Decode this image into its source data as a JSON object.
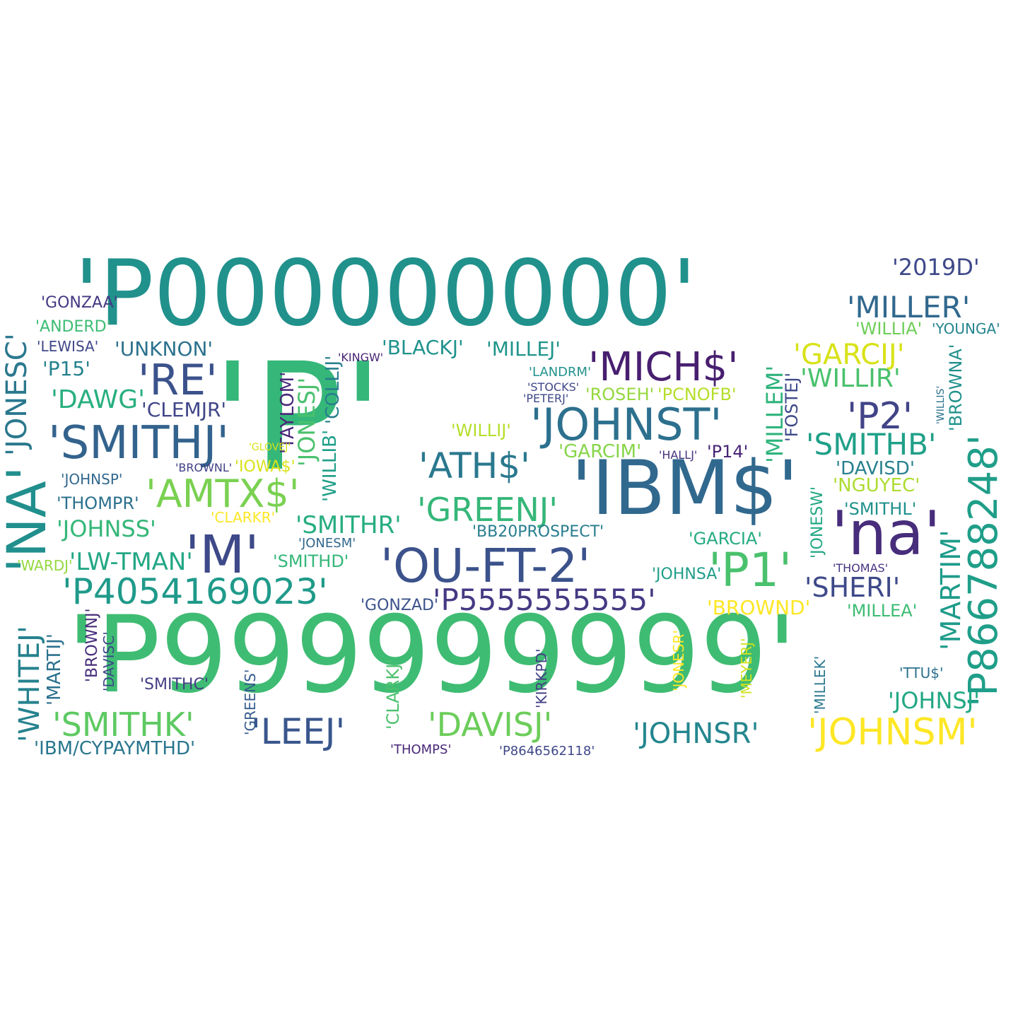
{
  "words": [
    {
      "text": "'P000000000'",
      "color": "#21918c"
    },
    {
      "text": "'P'",
      "color": "#35b779"
    },
    {
      "text": "'P999999999'",
      "color": "#3fbc73"
    },
    {
      "text": "'NA'",
      "color": "#218f8d"
    },
    {
      "text": "'IBM$'",
      "color": "#31688e"
    },
    {
      "text": "'na'",
      "color": "#472d7b"
    },
    {
      "text": "'SMITHJ'",
      "color": "#33638d"
    },
    {
      "text": "'JOHNST'",
      "color": "#2d708e"
    },
    {
      "text": "'MICH$'",
      "color": "#481f70"
    },
    {
      "text": "'P866788248'",
      "color": "#1f9e89"
    },
    {
      "text": "'OU-FT-2'",
      "color": "#3b528b"
    },
    {
      "text": "'P4054169023'",
      "color": "#1f9a8a"
    },
    {
      "text": "'P5555555555'",
      "color": "#443a83"
    },
    {
      "text": "'SMITHK'",
      "color": "#5ec962"
    },
    {
      "text": "'DAVISJ'",
      "color": "#6ccd5a"
    },
    {
      "text": "'LEEJ'",
      "color": "#39568c"
    },
    {
      "text": "'JOHNSM'",
      "color": "#fde725"
    },
    {
      "text": "'JOHNSR'",
      "color": "#24868e"
    },
    {
      "text": "'M'",
      "color": "#3e4989"
    },
    {
      "text": "'RE'",
      "color": "#3b528b"
    },
    {
      "text": "'AMTX$'",
      "color": "#7ad151"
    },
    {
      "text": "'ATH$'",
      "color": "#2a788e"
    },
    {
      "text": "'GREENJ'",
      "color": "#35b779"
    },
    {
      "text": "'P1'",
      "color": "#4ac16d"
    },
    {
      "text": "'P2'",
      "color": "#414487"
    },
    {
      "text": "'MILLER'",
      "color": "#31688e"
    },
    {
      "text": "'GARCIJ'",
      "color": "#d8e219"
    },
    {
      "text": "'2019D'",
      "color": "#3e4989"
    },
    {
      "text": "'JONESC'",
      "color": "#2a788e"
    },
    {
      "text": "'WHITEJ'",
      "color": "#26828e"
    },
    {
      "text": "'SMITHB'",
      "color": "#1fa088"
    },
    {
      "text": "'MARTIM'",
      "color": "#1e9b8a"
    },
    {
      "text": "'SHERI'",
      "color": "#3e4989"
    },
    {
      "text": "'DAWG'",
      "color": "#29af7f"
    },
    {
      "text": "'SMITHR'",
      "color": "#26ad81"
    },
    {
      "text": "'LW-TMAN'",
      "color": "#22a785"
    },
    {
      "text": "'JOHNSS'",
      "color": "#35b779"
    },
    {
      "text": "'JOHNSJ'",
      "color": "#22a884"
    },
    {
      "text": "'UNKNON'",
      "color": "#2c728e"
    },
    {
      "text": "'BLACKJ'",
      "color": "#20928c"
    },
    {
      "text": "'MILLEJ'",
      "color": "#1f958b"
    },
    {
      "text": "'WILLIR'",
      "color": "#4ac16d"
    },
    {
      "text": "'CLEMJR'",
      "color": "#404688"
    },
    {
      "text": "'GARCIM'",
      "color": "#86d549"
    },
    {
      "text": "'ROSEH'",
      "color": "#95d840"
    },
    {
      "text": "'PCNOFB'",
      "color": "#b5de2b"
    },
    {
      "text": "'BROWND'",
      "color": "#fde725"
    },
    {
      "text": "'IBM/CYPAYMTHD'",
      "color": "#2a768e"
    },
    {
      "text": "'NGUYEC'",
      "color": "#addc30"
    },
    {
      "text": "'DAVISD'",
      "color": "#27808e"
    },
    {
      "text": "'SMITHL'",
      "color": "#21918c"
    },
    {
      "text": "'MILLEA'",
      "color": "#3dbc74"
    },
    {
      "text": "'JOHNSA'",
      "color": "#1f9e89"
    },
    {
      "text": "'SMITHD'",
      "color": "#35b779"
    },
    {
      "text": "'GARCIA'",
      "color": "#25ab82"
    },
    {
      "text": "'BB20PROSPECT'",
      "color": "#287d8e"
    },
    {
      "text": "'GONZAD'",
      "color": "#3b528b"
    },
    {
      "text": "'P15'",
      "color": "#26828e"
    },
    {
      "text": "'THOMPR'",
      "color": "#2c718e"
    },
    {
      "text": "'TAYLOM'",
      "color": "#482878"
    },
    {
      "text": "'JONESJ'",
      "color": "#4ac16d"
    },
    {
      "text": "'COLLIJ'",
      "color": "#277f8e"
    },
    {
      "text": "'WILLIB'",
      "color": "#1f9f88"
    },
    {
      "text": "'MILLEM'",
      "color": "#2fb47c"
    },
    {
      "text": "'FOSTEJ'",
      "color": "#3e4989"
    },
    {
      "text": "'BROWNA'",
      "color": "#21918c"
    },
    {
      "text": "'GONZAA'",
      "color": "#453882"
    },
    {
      "text": "'ANDERD'",
      "color": "#3dbc74"
    },
    {
      "text": "'LEWISA'",
      "color": "#3f4788"
    },
    {
      "text": "'WILLIA'",
      "color": "#6ece58"
    },
    {
      "text": "'YOUNGA'",
      "color": "#25848e"
    },
    {
      "text": "'WILLIJ'",
      "color": "#b5de2b"
    },
    {
      "text": "'P14'",
      "color": "#482576"
    },
    {
      "text": "'IOWA$'",
      "color": "#d8e219"
    },
    {
      "text": "'CLARKR'",
      "color": "#fde725"
    },
    {
      "text": "'JOHNSP'",
      "color": "#31688e"
    },
    {
      "text": "'WARDJ'",
      "color": "#95d840"
    },
    {
      "text": "'LANDRM'",
      "color": "#21918c"
    },
    {
      "text": "'BROWNJ'",
      "color": "#472c7a"
    },
    {
      "text": "'DAVISC'",
      "color": "#3e4989"
    },
    {
      "text": "'MARTIJ'",
      "color": "#2c728e"
    },
    {
      "text": "'SMITHC'",
      "color": "#433e85"
    },
    {
      "text": "'JONESM'",
      "color": "#31688e"
    },
    {
      "text": "'KINGW'",
      "color": "#482475"
    },
    {
      "text": "'STOCKS'",
      "color": "#404688"
    },
    {
      "text": "'PETERJ'",
      "color": "#3e4989"
    },
    {
      "text": "'JONESW'",
      "color": "#22a884"
    },
    {
      "text": "'THOMAS'",
      "color": "#46337f"
    },
    {
      "text": "'TTU$'",
      "color": "#2c728e"
    },
    {
      "text": "'MILLEK'",
      "color": "#2a788e"
    },
    {
      "text": "'CLARKJ'",
      "color": "#4ac16d"
    },
    {
      "text": "'GREENS'",
      "color": "#365c8d"
    },
    {
      "text": "'KIRKPD'",
      "color": "#433e85"
    },
    {
      "text": "'JONESR'",
      "color": "#fde725"
    },
    {
      "text": "'MEYERJ'",
      "color": "#d2e21b"
    },
    {
      "text": "'THOMPS'",
      "color": "#482878"
    },
    {
      "text": "'P8646562118'",
      "color": "#3f4788"
    },
    {
      "text": "'HALLJ'",
      "color": "#46327e"
    },
    {
      "text": "'WILLIS'",
      "color": "#2d708e"
    },
    {
      "text": "'GLOVEJ'",
      "color": "#d8e219"
    },
    {
      "text": "'BROWNL'",
      "color": "#424086"
    }
  ]
}
